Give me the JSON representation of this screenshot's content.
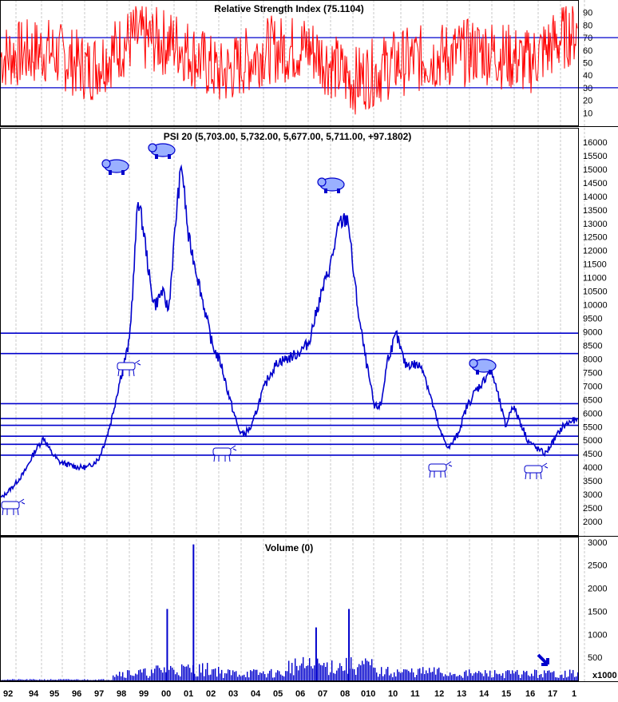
{
  "colors": {
    "rsi": "#ff0000",
    "price": "#0000cc",
    "volume": "#0000cc",
    "grid": "#c8c8c8",
    "band": "#0000cc"
  },
  "chart_data": [
    {
      "type": "line",
      "title": "Relative Strength Index (75.1104)",
      "ylim": [
        0,
        100
      ],
      "y_ticks": [
        "90",
        "80",
        "70",
        "60",
        "50",
        "40",
        "30",
        "20",
        "10"
      ],
      "y_tick_values": [
        90,
        80,
        70,
        60,
        50,
        40,
        30,
        20,
        10
      ],
      "bands": [
        30,
        70
      ],
      "series": [
        {
          "values_summary": "oscillates mostly between 20 and 90",
          "x": [
            1992,
            1994,
            1996,
            1998,
            2000,
            2002,
            2004,
            2006,
            2008,
            2010,
            2012,
            2014,
            2016,
            2018
          ],
          "values": [
            55,
            60,
            45,
            70,
            65,
            40,
            60,
            62,
            35,
            50,
            55,
            60,
            50,
            75
          ]
        }
      ]
    },
    {
      "type": "line",
      "title": "PSI 20 (5,703.00, 5,732.00, 5,677.00, 5,711.00, +97.1802)",
      "ylim": [
        1500,
        16500
      ],
      "y_ticks": [
        "16000",
        "15500",
        "15000",
        "14500",
        "14000",
        "13500",
        "13000",
        "12500",
        "12000",
        "11500",
        "11000",
        "10500",
        "10000",
        "9500",
        "9000",
        "8500",
        "8000",
        "7500",
        "7000",
        "6500",
        "6000",
        "5500",
        "5000",
        "4500",
        "4000",
        "3500",
        "3000",
        "2500",
        "2000"
      ],
      "y_tick_values": [
        16000,
        15500,
        15000,
        14500,
        14000,
        13500,
        13000,
        12500,
        12000,
        11500,
        11000,
        10500,
        10000,
        9500,
        9000,
        8500,
        8000,
        7500,
        7000,
        6500,
        6000,
        5500,
        5000,
        4500,
        4000,
        3500,
        3000,
        2500,
        2000
      ],
      "horizontal_levels": [
        8950,
        8200,
        6350,
        5800,
        5550,
        5150,
        4850,
        4450
      ],
      "series": [
        {
          "x": [
            1992.0,
            1992.5,
            1993.0,
            1993.5,
            1993.9,
            1994.2,
            1994.6,
            1995.0,
            1995.5,
            1995.9,
            1996.4,
            1996.8,
            1997.0,
            1997.4,
            1997.8,
            1998.0,
            1998.2,
            1998.5,
            1998.8,
            1999.0,
            1999.3,
            1999.6,
            2000.0,
            2000.2,
            2000.5,
            2000.8,
            2001.2,
            2001.6,
            2002.0,
            2002.4,
            2002.8,
            2003.0,
            2003.4,
            2003.8,
            2004.2,
            2004.6,
            2005.0,
            2005.5,
            2006.0,
            2006.5,
            2007.0,
            2007.4,
            2007.8,
            2008.0,
            2008.3,
            2008.6,
            2009.0,
            2009.3,
            2009.6,
            2010.0,
            2010.4,
            2010.8,
            2011.2,
            2011.6,
            2012.0,
            2012.4,
            2012.8,
            2013.2,
            2013.6,
            2014.0,
            2014.3,
            2014.6,
            2015.0,
            2015.3,
            2015.6,
            2016.0,
            2016.4,
            2016.8,
            2017.2,
            2017.6,
            2018.0
          ],
          "values": [
            2900,
            3300,
            3800,
            4600,
            5100,
            4600,
            4200,
            4100,
            4000,
            4000,
            4300,
            5200,
            5800,
            7300,
            8600,
            11000,
            14000,
            12500,
            10500,
            10000,
            10500,
            9800,
            13800,
            15200,
            12500,
            11500,
            10000,
            8500,
            7800,
            6500,
            5400,
            5200,
            5500,
            6600,
            7400,
            7900,
            8000,
            8200,
            8600,
            10200,
            11500,
            13000,
            13200,
            11500,
            9500,
            8000,
            6200,
            6300,
            8000,
            8900,
            7800,
            7800,
            7700,
            6500,
            5300,
            4700,
            5200,
            6200,
            6800,
            7200,
            7700,
            6800,
            5500,
            6300,
            5800,
            5000,
            4700,
            4500,
            5000,
            5500,
            5711
          ]
        }
      ]
    },
    {
      "type": "bar",
      "title": "Volume (0)",
      "ylim": [
        0,
        3100
      ],
      "y_ticks": [
        "3000",
        "2500",
        "2000",
        "1500",
        "1000",
        "500"
      ],
      "y_tick_values": [
        3000,
        2500,
        2000,
        1500,
        1000,
        500
      ],
      "unit_label": "x1000",
      "spikes": [
        {
          "x": 1999.5,
          "value": 1550
        },
        {
          "x": 2000.7,
          "value": 2950
        },
        {
          "x": 2006.3,
          "value": 1150
        },
        {
          "x": 2007.8,
          "value": 1550
        }
      ],
      "x_ticks": [
        "92",
        "94",
        "95",
        "96",
        "97",
        "98",
        "99",
        "00",
        "01",
        "02",
        "03",
        "04",
        "05",
        "06",
        "07",
        "08",
        "010",
        "10",
        "11",
        "12",
        "13",
        "14",
        "15",
        "16",
        "17",
        "1"
      ]
    }
  ]
}
